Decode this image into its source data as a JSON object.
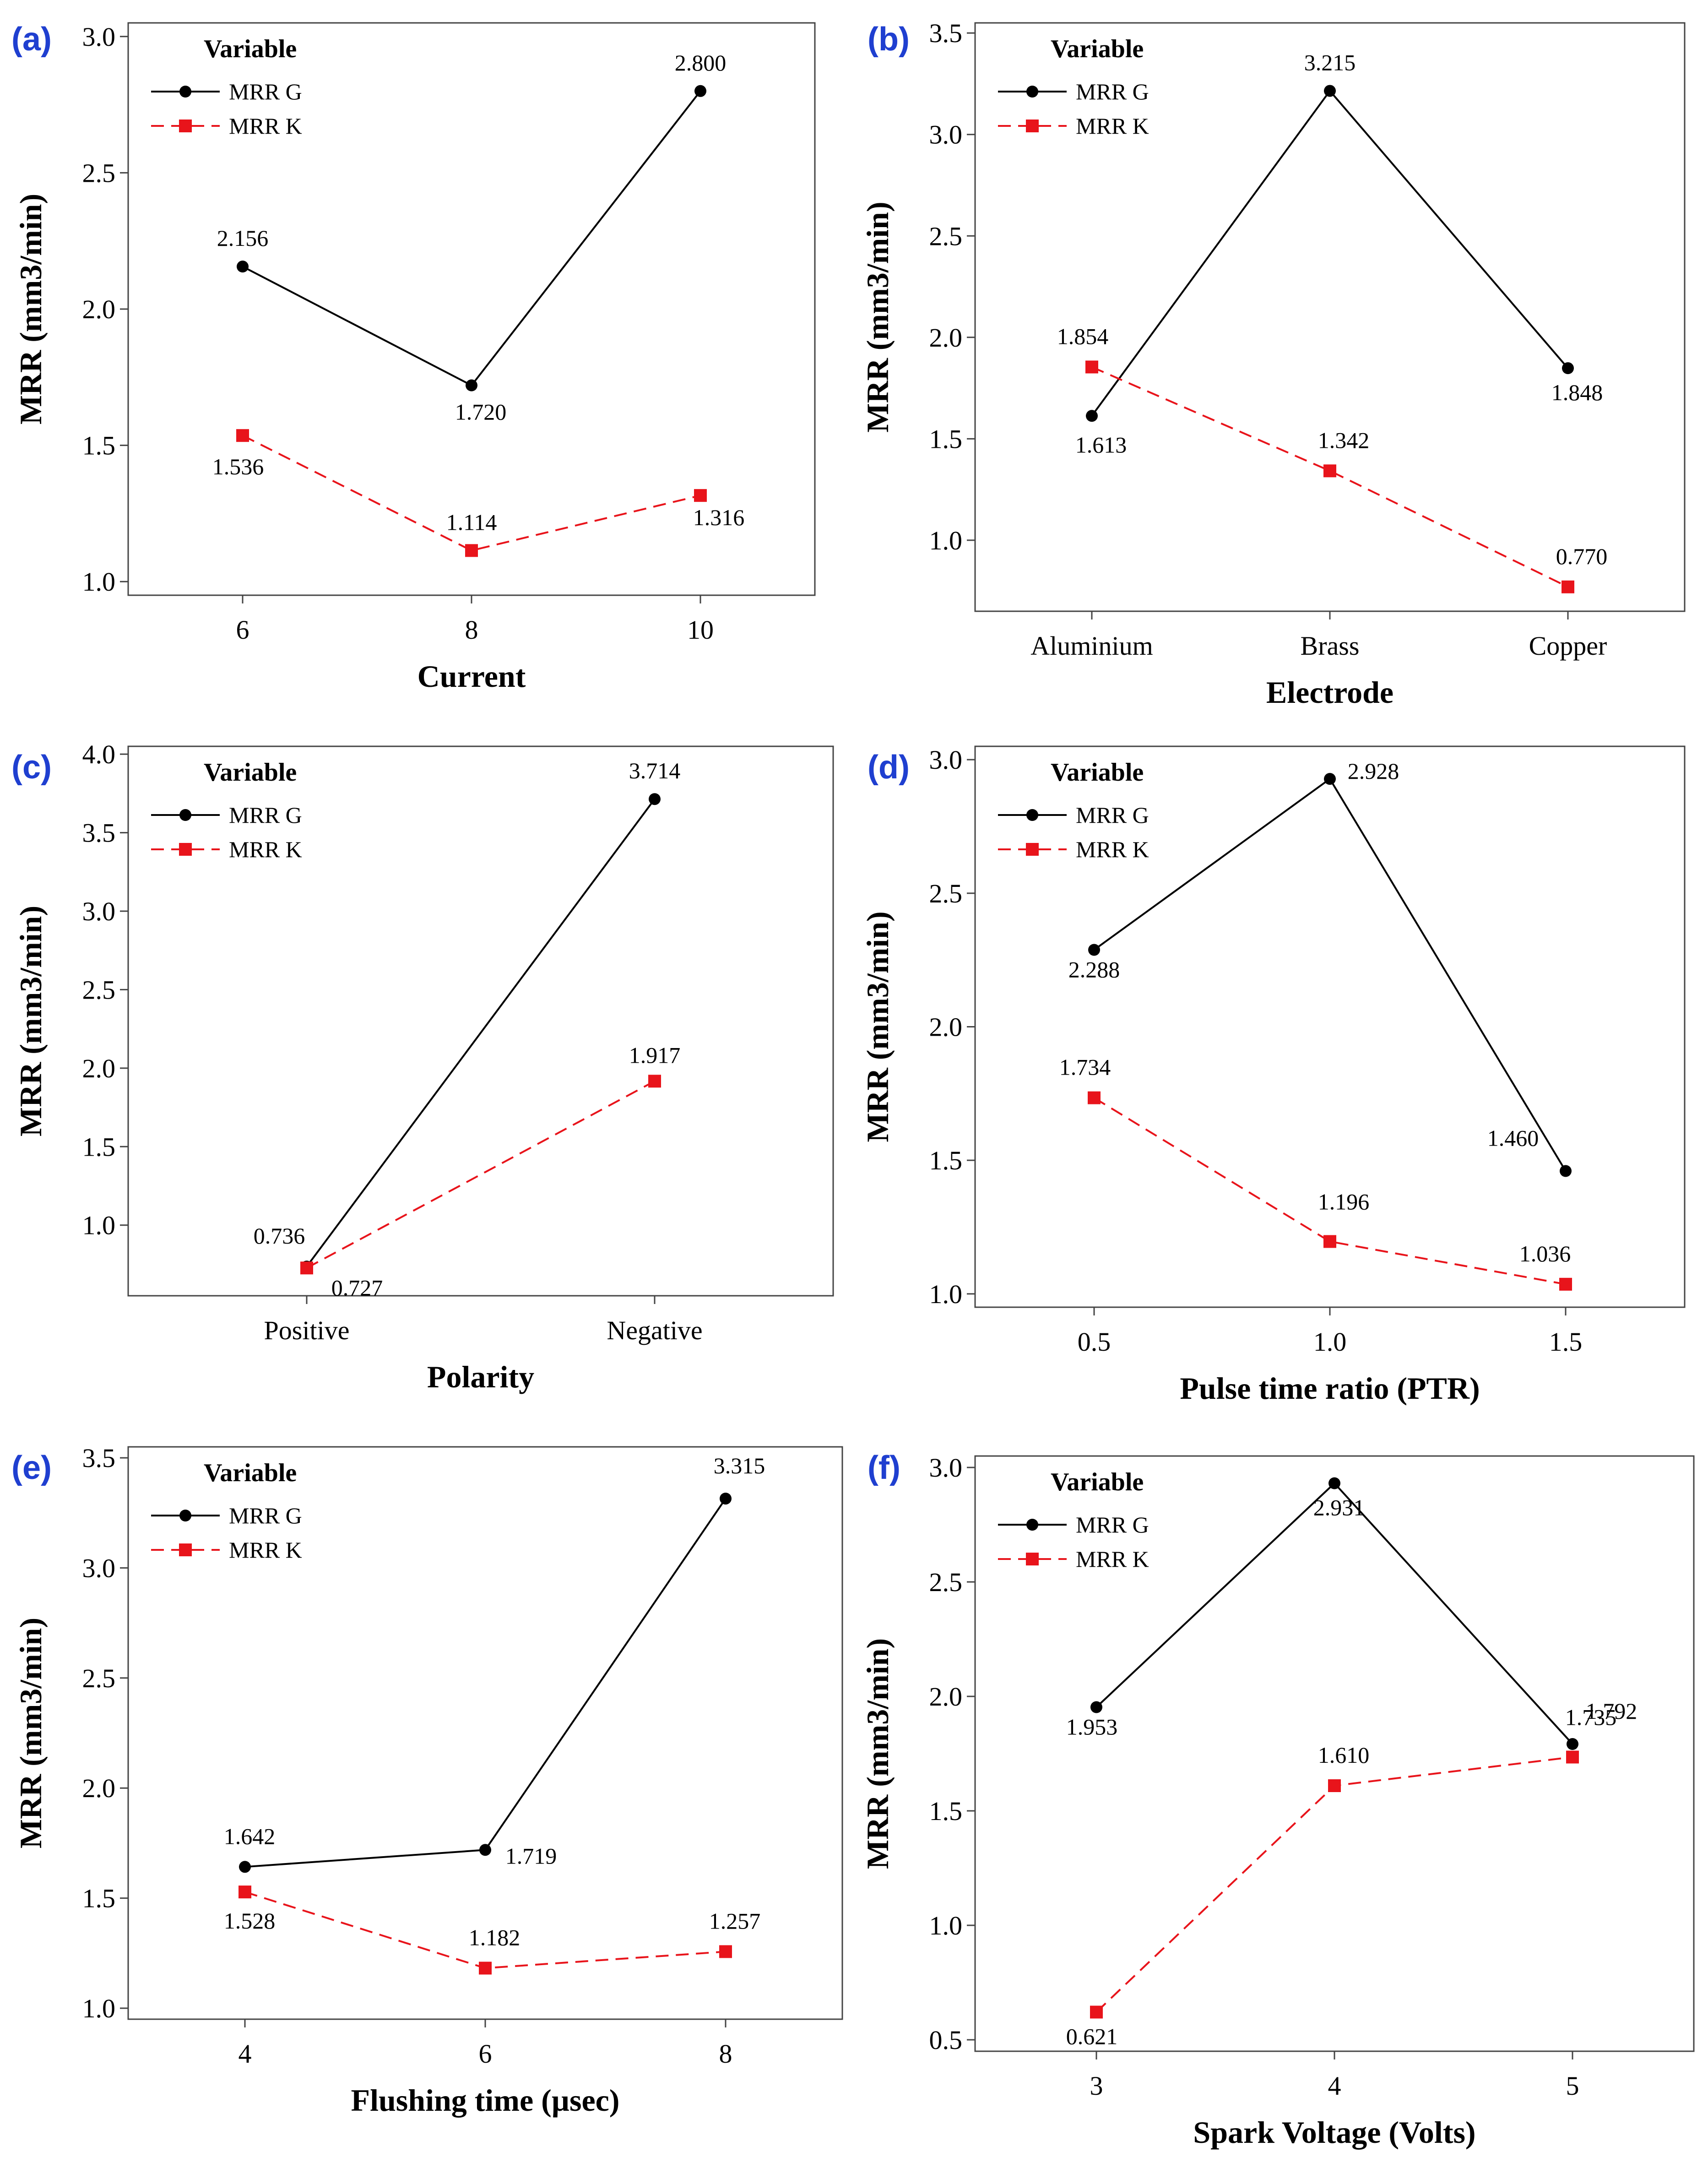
{
  "colors": {
    "panel_letter": "#1f3fd0",
    "series_g": "#000000",
    "series_k": "#e8141b",
    "axis": "#444444"
  },
  "chart_data": [
    {
      "type": "line",
      "panel": "(a)",
      "xlabel": "Current",
      "ylabel": "MRR (mm3/min)",
      "categories": [
        "6",
        "8",
        "10"
      ],
      "ylim": [
        0.95,
        3.05
      ],
      "yticks": [
        "1.0",
        "1.5",
        "2.0",
        "2.5",
        "3.0"
      ],
      "legend": {
        "title": "Variable",
        "position": "top-left"
      },
      "series": [
        {
          "name": "MRR G",
          "values": [
            2.156,
            1.72,
            2.8
          ],
          "labels": [
            "2.156",
            "1.720",
            "2.800"
          ]
        },
        {
          "name": "MRR K",
          "values": [
            1.536,
            1.114,
            1.316
          ],
          "labels": [
            "1.536",
            "1.114",
            "1.316"
          ]
        }
      ]
    },
    {
      "type": "line",
      "panel": "(b)",
      "xlabel": "Electrode",
      "ylabel": "MRR (mm3/min)",
      "categories": [
        "Aluminium",
        "Brass",
        "Copper"
      ],
      "ylim": [
        0.65,
        3.55
      ],
      "yticks": [
        "1.0",
        "1.5",
        "2.0",
        "2.5",
        "3.0",
        "3.5"
      ],
      "legend": {
        "title": "Variable",
        "position": "top-left"
      },
      "series": [
        {
          "name": "MRR G",
          "values": [
            1.613,
            3.215,
            1.848
          ],
          "labels": [
            "1.613",
            "3.215",
            "1.848"
          ]
        },
        {
          "name": "MRR K",
          "values": [
            1.854,
            1.342,
            0.77
          ],
          "labels": [
            "1.854",
            "1.342",
            "0.770"
          ]
        }
      ]
    },
    {
      "type": "line",
      "panel": "(c)",
      "xlabel": "Polarity",
      "ylabel": "MRR (mm3/min)",
      "categories": [
        "Positive",
        "Negative"
      ],
      "ylim": [
        0.55,
        4.05
      ],
      "yticks": [
        "1.0",
        "1.5",
        "2.0",
        "2.5",
        "3.0",
        "3.5",
        "4.0"
      ],
      "legend": {
        "title": "Variable",
        "position": "top-left"
      },
      "series": [
        {
          "name": "MRR G",
          "values": [
            0.736,
            3.714
          ],
          "labels": [
            "0.736",
            "3.714"
          ]
        },
        {
          "name": "MRR K",
          "values": [
            0.727,
            1.917
          ],
          "labels": [
            "0.727",
            "1.917"
          ]
        }
      ]
    },
    {
      "type": "line",
      "panel": "(d)",
      "xlabel": "Pulse time ratio (PTR)",
      "ylabel": "MRR (mm3/min)",
      "categories": [
        "0.5",
        "1.0",
        "1.5"
      ],
      "ylim": [
        0.95,
        3.05
      ],
      "yticks": [
        "1.0",
        "1.5",
        "2.0",
        "2.5",
        "3.0"
      ],
      "legend": {
        "title": "Variable",
        "position": "top-left"
      },
      "series": [
        {
          "name": "MRR G",
          "values": [
            2.288,
            2.928,
            1.46
          ],
          "labels": [
            "2.288",
            "2.928",
            "1.460"
          ]
        },
        {
          "name": "MRR K",
          "values": [
            1.734,
            1.196,
            1.036
          ],
          "labels": [
            "1.734",
            "1.196",
            "1.036"
          ]
        }
      ]
    },
    {
      "type": "line",
      "panel": "(e)",
      "xlabel": "Flushing time (µsec)",
      "ylabel": "MRR (mm3/min)",
      "categories": [
        "4",
        "6",
        "8"
      ],
      "ylim": [
        0.95,
        3.55
      ],
      "yticks": [
        "1.0",
        "1.5",
        "2.0",
        "2.5",
        "3.0",
        "3.5"
      ],
      "legend": {
        "title": "Variable",
        "position": "top-left"
      },
      "series": [
        {
          "name": "MRR G",
          "values": [
            1.642,
            1.719,
            3.315
          ],
          "labels": [
            "1.642",
            "1.719",
            "3.315"
          ]
        },
        {
          "name": "MRR K",
          "values": [
            1.528,
            1.182,
            1.257
          ],
          "labels": [
            "1.528",
            "1.182",
            "1.257"
          ]
        }
      ]
    },
    {
      "type": "line",
      "panel": "(f)",
      "xlabel": "Spark Voltage (Volts)",
      "ylabel": "MRR (mm3/min)",
      "categories": [
        "3",
        "4",
        "5"
      ],
      "ylim": [
        0.45,
        3.05
      ],
      "yticks": [
        "0.5",
        "1.0",
        "1.5",
        "2.0",
        "2.5",
        "3.0"
      ],
      "legend": {
        "title": "Variable",
        "position": "top-left"
      },
      "series": [
        {
          "name": "MRR G",
          "values": [
            1.953,
            2.931,
            1.792
          ],
          "labels": [
            "1.953",
            "2.931",
            "1.792"
          ]
        },
        {
          "name": "MRR K",
          "values": [
            0.621,
            1.61,
            1.735
          ],
          "labels": [
            "0.621",
            "1.610",
            "1.735"
          ]
        }
      ]
    }
  ]
}
